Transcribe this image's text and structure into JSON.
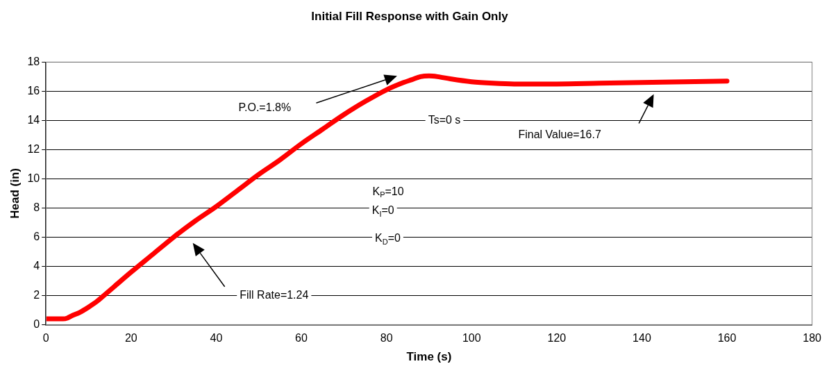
{
  "chart_data": {
    "type": "line",
    "title": "Initial Fill Response with Gain Only",
    "xlabel": "Time (s)",
    "ylabel": "Head (in)",
    "x": [
      0,
      2,
      4,
      5,
      6,
      8,
      10,
      12,
      14,
      16,
      20,
      25,
      30,
      35,
      40,
      45,
      50,
      55,
      60,
      65,
      70,
      75,
      80,
      84,
      86,
      88,
      90,
      92,
      95,
      100,
      105,
      110,
      120,
      130,
      140,
      150,
      160
    ],
    "series": [
      {
        "color": "#ff0000",
        "values": [
          0.4,
          0.4,
          0.4,
          0.45,
          0.6,
          0.85,
          1.2,
          1.6,
          2.1,
          2.6,
          3.6,
          4.8,
          6,
          7.1,
          8.1,
          9.2,
          10.3,
          11.3,
          12.4,
          13.4,
          14.4,
          15.3,
          16.1,
          16.6,
          16.8,
          17,
          17.05,
          17,
          16.85,
          16.65,
          16.55,
          16.5,
          16.5,
          16.55,
          16.6,
          16.65,
          16.7
        ]
      }
    ],
    "xlim": [
      0,
      180
    ],
    "xticks": [
      0,
      20,
      40,
      60,
      80,
      100,
      120,
      140,
      160,
      180
    ],
    "ylim": [
      0,
      18
    ],
    "yticks": [
      0,
      2,
      4,
      6,
      8,
      10,
      12,
      14,
      16,
      18
    ],
    "grid": "y",
    "legend": false,
    "marker": "none",
    "line_style": "solid",
    "annotations": [
      "P.O.=1.8%",
      "Ts=0 s",
      "Final Value=16.7",
      "K$_{P}$=10",
      "K$_{I}$=0",
      "K$_{D}$=0",
      "Fill Rate=1.24"
    ]
  }
}
